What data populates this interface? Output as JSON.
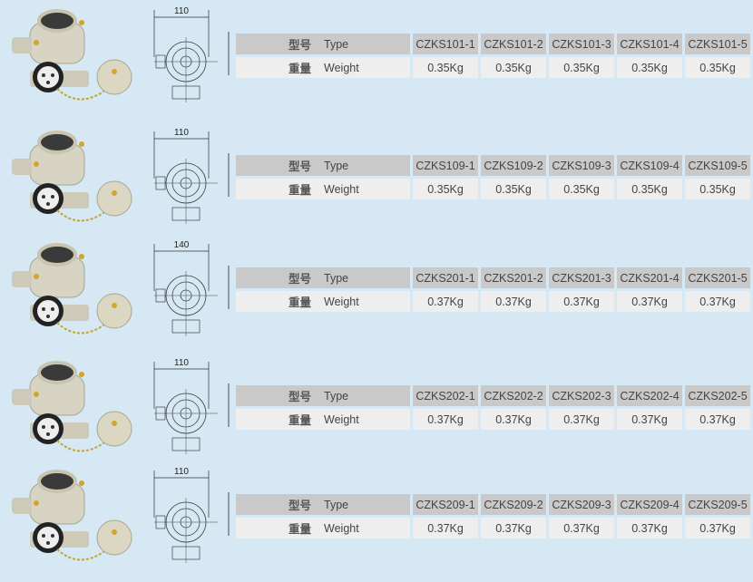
{
  "labels": {
    "type_cn": "型号",
    "type_en": "Type",
    "weight_cn": "重量",
    "weight_en": "Weight"
  },
  "products": [
    {
      "dimension": "110",
      "types": [
        "CZKS101-1",
        "CZKS101-2",
        "CZKS101-3",
        "CZKS101-4",
        "CZKS101-5"
      ],
      "weights": [
        "0.35Kg",
        "0.35Kg",
        "0.35Kg",
        "0.35Kg",
        "0.35Kg"
      ]
    },
    {
      "dimension": "110",
      "types": [
        "CZKS109-1",
        "CZKS109-2",
        "CZKS109-3",
        "CZKS109-4",
        "CZKS109-5"
      ],
      "weights": [
        "0.35Kg",
        "0.35Kg",
        "0.35Kg",
        "0.35Kg",
        "0.35Kg"
      ]
    },
    {
      "dimension": "140",
      "types": [
        "CZKS201-1",
        "CZKS201-2",
        "CZKS201-3",
        "CZKS201-4",
        "CZKS201-5"
      ],
      "weights": [
        "0.37Kg",
        "0.37Kg",
        "0.37Kg",
        "0.37Kg",
        "0.37Kg"
      ]
    },
    {
      "dimension": "110",
      "types": [
        "CZKS202-1",
        "CZKS202-2",
        "CZKS202-3",
        "CZKS202-4",
        "CZKS202-5"
      ],
      "weights": [
        "0.37Kg",
        "0.37Kg",
        "0.37Kg",
        "0.37Kg",
        "0.37Kg"
      ]
    },
    {
      "dimension": "110",
      "types": [
        "CZKS209-1",
        "CZKS209-2",
        "CZKS209-3",
        "CZKS209-4",
        "CZKS209-5"
      ],
      "weights": [
        "0.37Kg",
        "0.37Kg",
        "0.37Kg",
        "0.37Kg",
        "0.37Kg"
      ]
    }
  ]
}
